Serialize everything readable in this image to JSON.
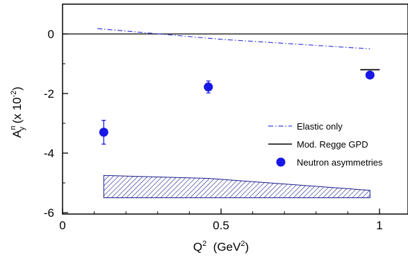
{
  "chart_data": {
    "type": "scatter",
    "xlabel": {
      "base": "Q",
      "sup": "2",
      "unit_open": "  (GeV",
      "unit_sup": "2",
      "unit_close": ")"
    },
    "ylabel": {
      "base": "A",
      "sup": "n",
      "sub": "y",
      "scale_open": " (x 10",
      "scale_sup": "-2",
      "scale_close": ")"
    },
    "xlim": [
      0,
      1.1
    ],
    "ylim": [
      -6,
      1
    ],
    "x_ticks": [
      {
        "value": 0,
        "label": "0"
      },
      {
        "value": 0.5,
        "label": "0.5"
      },
      {
        "value": 1,
        "label": "1"
      }
    ],
    "y_ticks": [
      {
        "value": 0,
        "label": "0"
      },
      {
        "value": -2,
        "label": "-2"
      },
      {
        "value": -4,
        "label": "-4"
      },
      {
        "value": -6,
        "label": "-6"
      }
    ],
    "zero_line": true,
    "grid": false,
    "legend_position": "right",
    "series": [
      {
        "name": "Elastic only",
        "kind": "line",
        "style": "dash-dot",
        "color": "#3a3adc",
        "points": [
          [
            0.11,
            0.18
          ],
          [
            0.5,
            -0.18
          ],
          [
            0.97,
            -0.5
          ]
        ]
      },
      {
        "name": "Mod. Regge GPD",
        "kind": "marker",
        "style": "solid",
        "color": "#000000",
        "points": [
          [
            0.97,
            -1.2
          ]
        ]
      },
      {
        "name": "Neutron asymmetries",
        "kind": "points",
        "color": "#1717e6",
        "points": [
          {
            "x": 0.13,
            "y": -3.3,
            "err": 0.4
          },
          {
            "x": 0.46,
            "y": -1.78,
            "err": 0.2
          },
          {
            "x": 0.97,
            "y": -1.38,
            "err": 0.07
          }
        ]
      }
    ],
    "systematic_band": {
      "color": "#1a1a8c",
      "x": [
        0.13,
        0.46,
        0.97
      ],
      "lower": -5.5,
      "upper": [
        -4.75,
        -4.85,
        -5.25
      ]
    }
  }
}
